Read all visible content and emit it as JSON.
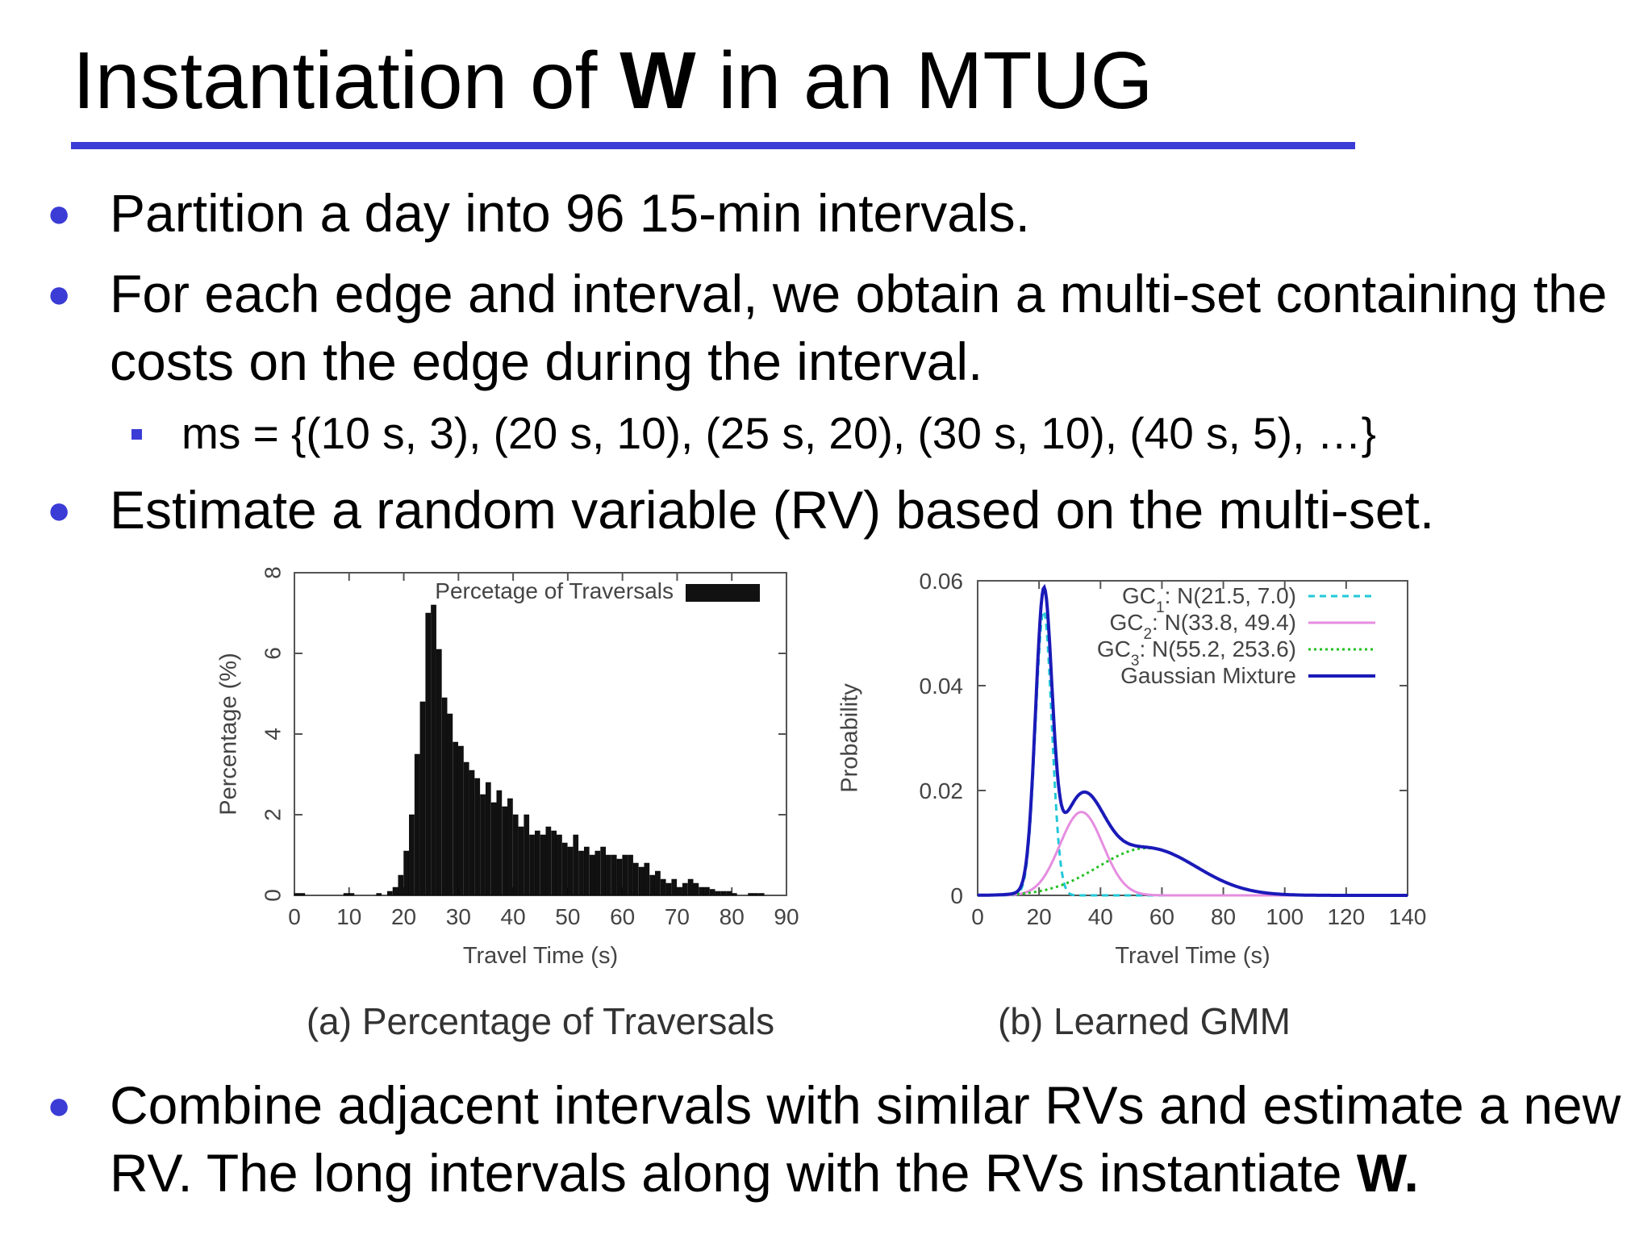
{
  "slide": {
    "title_pre": "Instantiation of ",
    "title_bold": "W",
    "title_post": " in an MTUG",
    "accent_color": "#3b3bd6"
  },
  "bullets": [
    {
      "text": "Partition a day into 96 15-min intervals."
    },
    {
      "text": "For each edge and interval, we obtain a multi-set containing the costs on the edge during the interval."
    },
    {
      "text": "Estimate a random variable (RV) based on the multi-set."
    },
    {
      "text_pre": "Combine adjacent intervals with similar RVs and estimate a new RV. The long intervals along with the RVs instantiate ",
      "text_bold": "W."
    }
  ],
  "sub_bullet": {
    "text": "ms = {(10 s, 3), (20 s, 10), (25 s, 20), (30 s, 10), (40 s, 5), …}"
  },
  "chart_data": [
    {
      "type": "bar",
      "caption": "(a) Percentage of Traversals",
      "xlabel": "Travel Time (s)",
      "ylabel": "Percentage (%)",
      "xlim": [
        0,
        90
      ],
      "ylim": [
        0,
        8
      ],
      "xticks": [
        0,
        10,
        20,
        30,
        40,
        50,
        60,
        70,
        80,
        90
      ],
      "yticks": [
        0,
        2,
        4,
        6,
        8
      ],
      "legend": "Percetage of Traversals",
      "legend_position": "top-right",
      "bin_width": 1,
      "bin_start": 0,
      "values": [
        0.05,
        0.05,
        0.0,
        0.0,
        0.0,
        0.0,
        0.0,
        0.0,
        0.0,
        0.05,
        0.05,
        0.0,
        0.0,
        0.0,
        0.0,
        0.05,
        0.0,
        0.1,
        0.2,
        0.5,
        1.1,
        2.0,
        3.5,
        4.8,
        7.0,
        7.2,
        6.1,
        4.9,
        4.5,
        3.8,
        3.7,
        3.3,
        3.1,
        2.9,
        2.5,
        2.8,
        2.3,
        2.6,
        2.2,
        2.4,
        2.0,
        1.7,
        2.0,
        1.5,
        1.6,
        1.5,
        1.7,
        1.6,
        1.5,
        1.3,
        1.2,
        1.5,
        1.1,
        1.2,
        1.0,
        1.1,
        1.2,
        1.0,
        1.0,
        0.9,
        1.0,
        1.0,
        0.8,
        0.7,
        0.8,
        0.5,
        0.6,
        0.4,
        0.3,
        0.4,
        0.2,
        0.3,
        0.4,
        0.3,
        0.2,
        0.2,
        0.15,
        0.1,
        0.1,
        0.1,
        0.05,
        0.0,
        0.0,
        0.05,
        0.05,
        0.05,
        0.0,
        0.0,
        0.0,
        0.0
      ],
      "color": "#111111"
    },
    {
      "type": "line",
      "caption": "(b) Learned GMM",
      "xlabel": "Travel Time (s)",
      "ylabel": "Probability",
      "xlim": [
        0,
        140
      ],
      "ylim": [
        0,
        0.06
      ],
      "xticks": [
        0,
        20,
        40,
        60,
        80,
        100,
        120,
        140
      ],
      "yticks": [
        0,
        0.02,
        0.04,
        0.06
      ],
      "legend_position": "top-right",
      "series": [
        {
          "name_main": "GC",
          "name_sub": "1",
          "name_rest": ": N(21.5, 7.0)",
          "mu": 21.5,
          "var": 7.0,
          "weight": 0.36,
          "color": "#22c8d8",
          "style": "dashed"
        },
        {
          "name_main": "GC",
          "name_sub": "2",
          "name_rest": ": N(33.8, 49.4)",
          "mu": 33.8,
          "var": 49.4,
          "weight": 0.28,
          "color": "#e58de0",
          "style": "solid"
        },
        {
          "name_main": "GC",
          "name_sub": "3",
          "name_rest": ": N(55.2, 253.6)",
          "mu": 55.2,
          "var": 253.6,
          "weight": 0.36,
          "color": "#22c022",
          "style": "dotted"
        },
        {
          "name_main": "Gaussian Mixture",
          "name_sub": "",
          "name_rest": "",
          "mixture": true,
          "color": "#1a1ab8",
          "style": "solid"
        }
      ]
    }
  ]
}
